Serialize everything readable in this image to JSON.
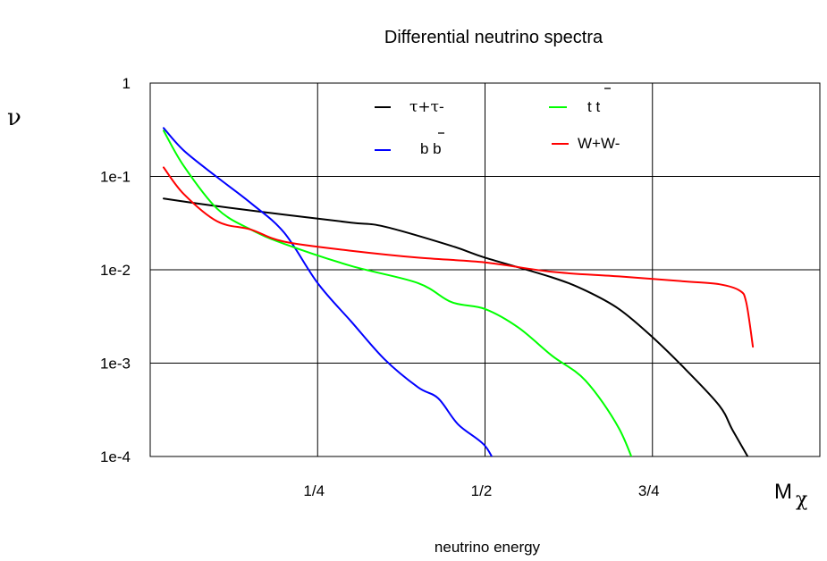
{
  "chart_data": {
    "type": "line",
    "title": "Differential neutrino spectra",
    "xlabel": "neutrino energy",
    "ylabel": "ν",
    "x_unit_label": "M",
    "x_unit_sub": "χ",
    "xlim": [
      0,
      1
    ],
    "ylim": [
      0.0001,
      1
    ],
    "yscale": "log",
    "grid": true,
    "x_ticks": [
      {
        "value": 0.25,
        "label": "1/4"
      },
      {
        "value": 0.5,
        "label": "1/2"
      },
      {
        "value": 0.75,
        "label": "3/4"
      }
    ],
    "y_ticks": [
      {
        "value": 1,
        "label": "1"
      },
      {
        "value": 0.1,
        "label": "1e-1"
      },
      {
        "value": 0.01,
        "label": "1e-2"
      },
      {
        "value": 0.001,
        "label": "1e-3"
      },
      {
        "value": 0.0001,
        "label": "1e-4"
      }
    ],
    "legend_placement": "top",
    "series": [
      {
        "name": "τ+τ-",
        "color": "#000000",
        "points": [
          [
            0.02,
            0.058
          ],
          [
            0.1,
            0.048
          ],
          [
            0.2,
            0.039
          ],
          [
            0.3,
            0.032
          ],
          [
            0.35,
            0.029
          ],
          [
            0.45,
            0.018
          ],
          [
            0.5,
            0.0135
          ],
          [
            0.6,
            0.0083
          ],
          [
            0.65,
            0.006
          ],
          [
            0.7,
            0.0038
          ],
          [
            0.75,
            0.0019
          ],
          [
            0.8,
            0.00085
          ],
          [
            0.85,
            0.00035
          ],
          [
            0.87,
            0.00019
          ],
          [
            0.9,
            8e-05
          ]
        ]
      },
      {
        "name": "b b",
        "color": "#0000ff",
        "points": [
          [
            0.02,
            0.33
          ],
          [
            0.05,
            0.19
          ],
          [
            0.1,
            0.098
          ],
          [
            0.15,
            0.052
          ],
          [
            0.2,
            0.025
          ],
          [
            0.25,
            0.0072
          ],
          [
            0.3,
            0.0028
          ],
          [
            0.35,
            0.0011
          ],
          [
            0.4,
            0.00055
          ],
          [
            0.43,
            0.00042
          ],
          [
            0.46,
            0.00022
          ],
          [
            0.5,
            0.00013
          ],
          [
            0.52,
            7e-05
          ]
        ]
      },
      {
        "name": "t t",
        "color": "#00ff00",
        "points": [
          [
            0.02,
            0.31
          ],
          [
            0.05,
            0.13
          ],
          [
            0.1,
            0.045
          ],
          [
            0.15,
            0.027
          ],
          [
            0.2,
            0.019
          ],
          [
            0.3,
            0.011
          ],
          [
            0.4,
            0.0072
          ],
          [
            0.45,
            0.0045
          ],
          [
            0.5,
            0.0038
          ],
          [
            0.55,
            0.0024
          ],
          [
            0.6,
            0.0012
          ],
          [
            0.65,
            0.00065
          ],
          [
            0.7,
            0.0002
          ],
          [
            0.73,
            6e-05
          ]
        ]
      },
      {
        "name": "W+W-",
        "color": "#ff0000",
        "points": [
          [
            0.02,
            0.125
          ],
          [
            0.05,
            0.065
          ],
          [
            0.1,
            0.033
          ],
          [
            0.15,
            0.027
          ],
          [
            0.2,
            0.02
          ],
          [
            0.3,
            0.016
          ],
          [
            0.4,
            0.0135
          ],
          [
            0.5,
            0.012
          ],
          [
            0.6,
            0.0095
          ],
          [
            0.7,
            0.0085
          ],
          [
            0.8,
            0.0075
          ],
          [
            0.85,
            0.007
          ],
          [
            0.88,
            0.006
          ],
          [
            0.89,
            0.0045
          ],
          [
            0.9,
            0.0015
          ]
        ]
      }
    ]
  }
}
